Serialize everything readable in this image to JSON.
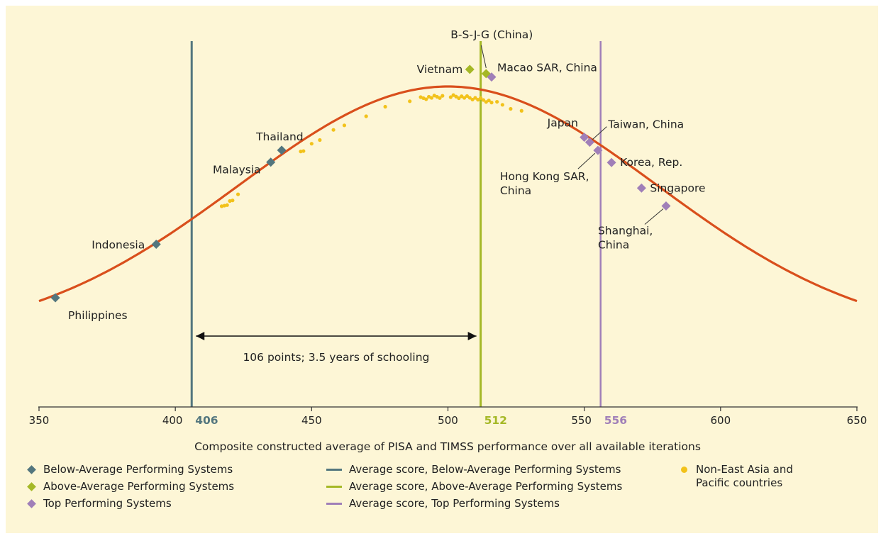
{
  "chart_data": {
    "type": "scatter",
    "xlabel": "Composite constructed average of PISA and TIMSS performance over all available iterations",
    "xlim": [
      350,
      650
    ],
    "x_ticks": [
      350,
      400,
      450,
      500,
      550,
      600,
      650
    ],
    "curve": {
      "kind": "normal-distribution",
      "color": "#d94f1c"
    },
    "averages": [
      {
        "name": "Average score, Below-Average Performing Systems",
        "value": 406,
        "label": "406",
        "color": "#53767e"
      },
      {
        "name": "Average score, Above-Average Performing Systems",
        "value": 512,
        "label": "512",
        "color": "#a5b826"
      },
      {
        "name": "Average score, Top Performing Systems",
        "value": 556,
        "label": "556",
        "color": "#a07fb8"
      }
    ],
    "span_annotation": {
      "from": 406,
      "to": 512,
      "text": "106 points; 3.5 years of schooling"
    },
    "series": [
      {
        "name": "Below-Average Performing Systems",
        "color": "#53767e",
        "points": [
          {
            "label": "Philippines",
            "x": 356
          },
          {
            "label": "Indonesia",
            "x": 393
          },
          {
            "label": "Malaysia",
            "x": 435
          },
          {
            "label": "Thailand",
            "x": 439
          }
        ]
      },
      {
        "name": "Above-Average Performing Systems",
        "color": "#a5b826",
        "points": [
          {
            "label": "Vietnam",
            "x": 508
          },
          {
            "label": "B-S-J-G (China)",
            "x": 514
          }
        ]
      },
      {
        "name": "Top Performing Systems",
        "color": "#a07fb8",
        "points": [
          {
            "label": "Macao SAR, China",
            "x": 516
          },
          {
            "label": "Japan",
            "x": 550
          },
          {
            "label": "Taiwan, China",
            "x": 552
          },
          {
            "label": "Hong Kong SAR, China",
            "x": 555
          },
          {
            "label": "Korea, Rep.",
            "x": 560
          },
          {
            "label": "Singapore",
            "x": 571
          },
          {
            "label": "Shanghai, China",
            "x": 580
          }
        ]
      },
      {
        "name": "Non-East Asia and Pacific countries",
        "color": "#f2c21a",
        "points": [
          {
            "x": 417
          },
          {
            "x": 418
          },
          {
            "x": 419
          },
          {
            "x": 420
          },
          {
            "x": 421
          },
          {
            "x": 423
          },
          {
            "x": 446
          },
          {
            "x": 447
          },
          {
            "x": 450
          },
          {
            "x": 453
          },
          {
            "x": 458
          },
          {
            "x": 462
          },
          {
            "x": 470
          },
          {
            "x": 477
          },
          {
            "x": 486
          },
          {
            "x": 490
          },
          {
            "x": 491
          },
          {
            "x": 492
          },
          {
            "x": 493
          },
          {
            "x": 494
          },
          {
            "x": 495
          },
          {
            "x": 496
          },
          {
            "x": 497
          },
          {
            "x": 498
          },
          {
            "x": 501
          },
          {
            "x": 502
          },
          {
            "x": 503
          },
          {
            "x": 504
          },
          {
            "x": 505
          },
          {
            "x": 506
          },
          {
            "x": 507
          },
          {
            "x": 508
          },
          {
            "x": 509
          },
          {
            "x": 510
          },
          {
            "x": 511
          },
          {
            "x": 512
          },
          {
            "x": 513
          },
          {
            "x": 514
          },
          {
            "x": 515
          },
          {
            "x": 516
          },
          {
            "x": 518
          },
          {
            "x": 520
          },
          {
            "x": 523
          },
          {
            "x": 527
          }
        ]
      }
    ],
    "legend": [
      {
        "label": "Below-Average Performing Systems",
        "marker": "diamond",
        "color": "#53767e"
      },
      {
        "label": "Above-Average Performing Systems",
        "marker": "diamond",
        "color": "#a5b826"
      },
      {
        "label": "Top Performing Systems",
        "marker": "diamond",
        "color": "#a07fb8"
      },
      {
        "label": "Average score, Below-Average Performing Systems",
        "marker": "line",
        "color": "#53767e"
      },
      {
        "label": "Average score, Above-Average Performing Systems",
        "marker": "line",
        "color": "#a5b826"
      },
      {
        "label": "Average score, Top Performing Systems",
        "marker": "line",
        "color": "#a07fb8"
      },
      {
        "label": "Non-East Asia and Pacific countries",
        "marker": "dot",
        "color": "#f2c21a"
      }
    ]
  }
}
